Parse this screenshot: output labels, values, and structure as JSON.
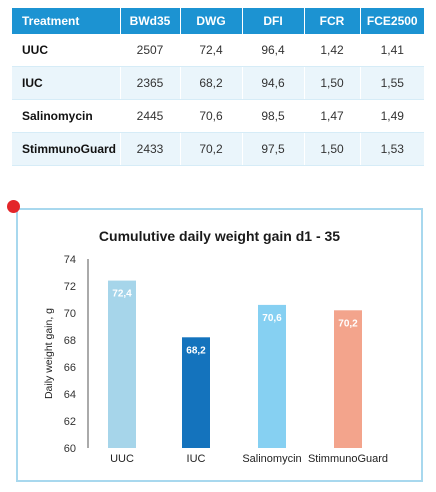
{
  "table": {
    "headers": [
      "Treatment",
      "BWd35",
      "DWG",
      "DFI",
      "FCR",
      "FCE2500"
    ],
    "rows": [
      [
        "UUC",
        "2507",
        "72,4",
        "96,4",
        "1,42",
        "1,41"
      ],
      [
        "IUC",
        "2365",
        "68,2",
        "94,6",
        "1,50",
        "1,55"
      ],
      [
        "Salinomycin",
        "2445",
        "70,6",
        "98,5",
        "1,47",
        "1,49"
      ],
      [
        "StimmunoGuard",
        "2433",
        "70,2",
        "97,5",
        "1,50",
        "1,53"
      ]
    ],
    "header_color": "#1c93d2",
    "stripe_color": "#eaf5fb"
  },
  "chart_data": {
    "type": "bar",
    "title": "Cumulutive daily weight gain d1 - 35",
    "ylabel": "Daily weight gain, g",
    "xlabel": "",
    "categories": [
      "UUC",
      "IUC",
      "Salinomycin",
      "StimmunoGuard"
    ],
    "values": [
      72.4,
      68.2,
      70.6,
      70.2
    ],
    "value_labels": [
      "72,4",
      "68,2",
      "70,6",
      "70,2"
    ],
    "colors": [
      "#a6d5ea",
      "#1473bd",
      "#86d0f2",
      "#f3a48c"
    ],
    "ylim": [
      60,
      74
    ],
    "yticks": [
      60,
      62,
      64,
      66,
      68,
      70,
      72,
      74
    ],
    "grid": false,
    "legend": "none"
  },
  "marker_color": "#e3262a",
  "panel_border_color": "#a8d8ee"
}
